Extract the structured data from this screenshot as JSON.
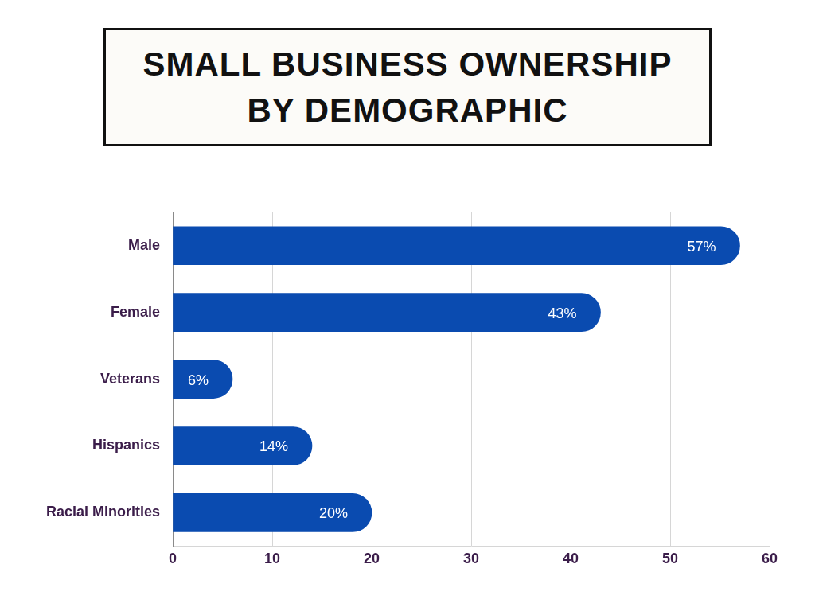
{
  "chart_data": {
    "type": "bar",
    "title": "SMALL BUSINESS OWNERSHIP BY DEMOGRAPHIC",
    "orientation": "horizontal",
    "categories": [
      "Male",
      "Female",
      "Veterans",
      "Hispanics",
      "Racial Minorities"
    ],
    "values": [
      57,
      43,
      6,
      14,
      20
    ],
    "value_labels": [
      "57%",
      "43%",
      "6%",
      "14%",
      "20%"
    ],
    "color": "#0a4bb0",
    "xlim": [
      0,
      60
    ],
    "xticks": [
      0,
      10,
      20,
      30,
      40,
      50,
      60
    ],
    "grid": true,
    "data_labels": true
  }
}
